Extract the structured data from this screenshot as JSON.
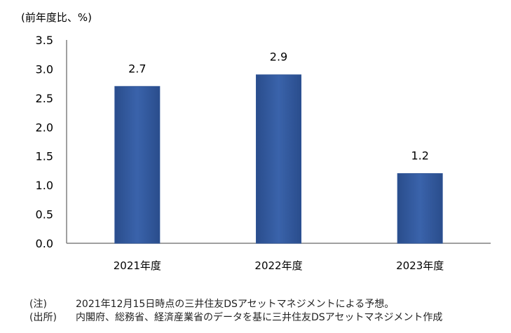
{
  "chart_data": {
    "type": "bar",
    "title": "",
    "ylabel": "(前年度比、%)",
    "xlabel": "",
    "categories": [
      "2021年度",
      "2022年度",
      "2023年度"
    ],
    "values": [
      2.7,
      2.9,
      1.2
    ],
    "data_labels": [
      "2.7",
      "2.9",
      "1.2"
    ],
    "ylim": [
      0,
      3.5
    ],
    "yticks": [
      "0.0",
      "0.5",
      "1.0",
      "1.5",
      "2.0",
      "2.5",
      "3.0",
      "3.5"
    ],
    "grid": false,
    "bar_color": "#2f5597"
  },
  "notes": [
    {
      "label": "(注)",
      "text": "2021年12月15日時点の三井住友DSアセットマネジメントによる予想。"
    },
    {
      "label": "(出所)",
      "text": "内閣府、総務省、経済産業省のデータを基に三井住友DSアセットマネジメント作成"
    }
  ]
}
